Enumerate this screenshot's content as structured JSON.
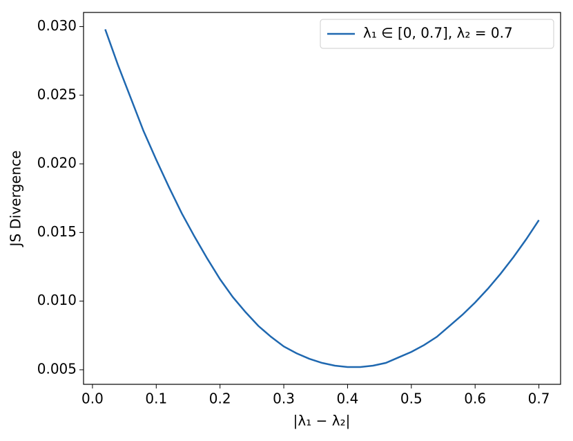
{
  "chart_data": {
    "type": "line",
    "xlabel": "|λ₁ − λ₂|",
    "ylabel": "JS Divergence",
    "x": [
      0.02,
      0.04,
      0.06,
      0.08,
      0.1,
      0.12,
      0.14,
      0.16,
      0.18,
      0.2,
      0.22,
      0.24,
      0.26,
      0.28,
      0.3,
      0.32,
      0.34,
      0.36,
      0.38,
      0.4,
      0.42,
      0.44,
      0.46,
      0.48,
      0.5,
      0.52,
      0.54,
      0.56,
      0.58,
      0.6,
      0.62,
      0.64,
      0.66,
      0.68,
      0.7
    ],
    "series": [
      {
        "name": "λ₁ ∈ [0, 0.7], λ₂ = 0.7",
        "color": "#1f68b0",
        "values": [
          0.0298,
          0.0272,
          0.0248,
          0.0224,
          0.0203,
          0.0183,
          0.0164,
          0.0147,
          0.0131,
          0.0116,
          0.0103,
          0.0092,
          0.0082,
          0.0074,
          0.0067,
          0.0062,
          0.0058,
          0.0055,
          0.0053,
          0.0052,
          0.0052,
          0.0053,
          0.0055,
          0.0059,
          0.0063,
          0.0068,
          0.0074,
          0.0082,
          0.009,
          0.0099,
          0.0109,
          0.012,
          0.0132,
          0.0145,
          0.0159
        ]
      }
    ],
    "xlim": [
      -0.014,
      0.734
    ],
    "xticks": [
      {
        "value": 0,
        "label": "0.0"
      },
      0.1,
      0.2,
      0.3,
      0.4,
      0.5,
      0.6,
      0.7
    ],
    "ylim": [
      0.00394,
      0.03103
    ],
    "yticks": [
      0.005,
      {
        "value": 0.01,
        "label": "0.010"
      },
      0.015,
      {
        "value": 0.02,
        "label": "0.020"
      },
      0.025,
      {
        "value": 0.03,
        "label": "0.030"
      }
    ],
    "grid": false,
    "legend": "upper-right"
  }
}
